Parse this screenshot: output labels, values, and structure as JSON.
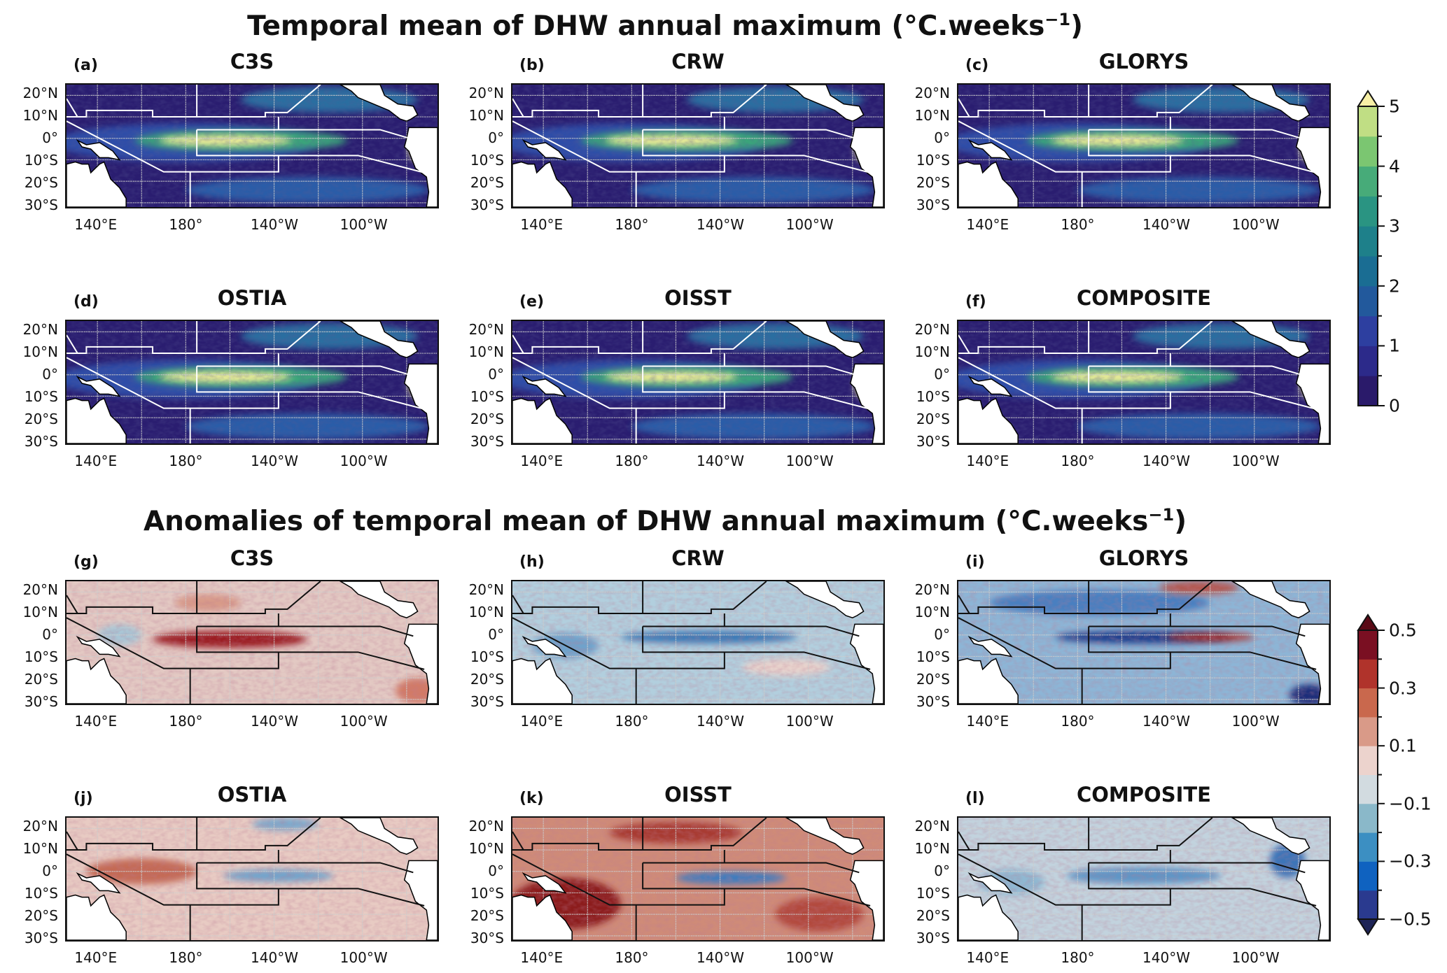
{
  "figure": {
    "title_top": "Temporal mean of DHW annual maximum (°C.weeks",
    "title_bottom": "Anomalies of temporal mean of DHW annual maximum (°C.weeks",
    "title_exponent": "−1",
    "close_paren": ")"
  },
  "axes": {
    "lat_ticks": [
      "20°N",
      "10°N",
      "0°",
      "10°S",
      "20°S",
      "30°S"
    ],
    "lon_ticks": [
      "140°E",
      "180°",
      "140°W",
      "100°W"
    ]
  },
  "chart_data": [
    {
      "type": "heatmap",
      "title": "Temporal mean of DHW annual maximum (°C.weeks⁻¹)",
      "panels": [
        {
          "label": "(a)",
          "title": "C3S"
        },
        {
          "label": "(b)",
          "title": "CRW"
        },
        {
          "label": "(c)",
          "title": "GLORYS"
        },
        {
          "label": "(d)",
          "title": "OSTIA"
        },
        {
          "label": "(e)",
          "title": "OISST"
        },
        {
          "label": "(f)",
          "title": "COMPOSITE"
        }
      ],
      "colorbar": {
        "range": [
          0,
          5
        ],
        "extend": "max",
        "tick_labels": [
          "0",
          "1",
          "2",
          "3",
          "4",
          "5"
        ],
        "tick_values": [
          0,
          1,
          2,
          3,
          4,
          5
        ],
        "colors": [
          "#2a1a6a",
          "#2c2a8a",
          "#2d3fa0",
          "#22599c",
          "#1a6d93",
          "#1e808a",
          "#2a9482",
          "#47ab79",
          "#7bc671",
          "#c0de84"
        ],
        "over_color": "#f7f0a6"
      }
    },
    {
      "type": "heatmap",
      "title": "Anomalies of temporal mean of DHW annual maximum (°C.weeks⁻¹)",
      "panels": [
        {
          "label": "(g)",
          "title": "C3S"
        },
        {
          "label": "(h)",
          "title": "CRW"
        },
        {
          "label": "(i)",
          "title": "GLORYS"
        },
        {
          "label": "(j)",
          "title": "OSTIA"
        },
        {
          "label": "(k)",
          "title": "OISST"
        },
        {
          "label": "(l)",
          "title": "COMPOSITE"
        }
      ],
      "colorbar": {
        "range": [
          -0.5,
          0.5
        ],
        "extend": "both",
        "tick_labels": [
          "0.5",
          "0.3",
          "0.1",
          "−0.1",
          "−0.3",
          "−0.5"
        ],
        "tick_values": [
          0.5,
          0.3,
          0.1,
          -0.1,
          -0.3,
          -0.5
        ],
        "colors": [
          "#2a3a8f",
          "#0f62c0",
          "#3c8fc2",
          "#8ab8c9",
          "#d2dbe0",
          "#ecd3cd",
          "#d99a88",
          "#c9684d",
          "#b0332b",
          "#7a0f22"
        ],
        "under_color": "#1e2456",
        "over_color": "#5a0a16"
      }
    }
  ]
}
